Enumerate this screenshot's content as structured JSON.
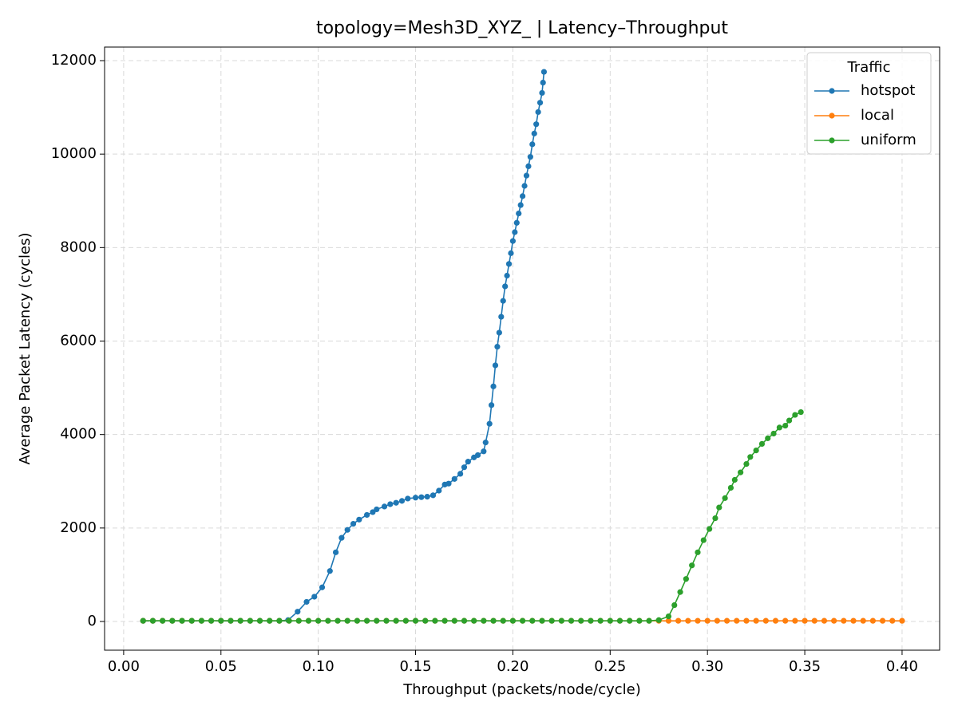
{
  "chart_data": {
    "type": "line",
    "title": "topology=Mesh3D_XYZ_ | Latency–Throughput",
    "x_label": "Throughput (packets/node/cycle)",
    "y_label": "Average Packet Latency (cycles)",
    "legend_title": "Traffic",
    "legend": "upper right",
    "grid": true,
    "xlim": [
      -0.0098,
      0.4193
    ],
    "ylim": [
      -614,
      12290
    ],
    "xticks": [
      {
        "value": 0,
        "label": "0.00"
      },
      {
        "value": 0.05,
        "label": "0.05"
      },
      {
        "value": 0.1,
        "label": "0.10"
      },
      {
        "value": 0.15,
        "label": "0.15"
      },
      {
        "value": 0.2,
        "label": "0.20"
      },
      {
        "value": 0.25,
        "label": "0.25"
      },
      {
        "value": 0.3,
        "label": "0.30"
      },
      {
        "value": 0.35,
        "label": "0.35"
      },
      {
        "value": 0.4,
        "label": "0.40"
      }
    ],
    "yticks": [
      0,
      2000,
      4000,
      6000,
      8000,
      10000,
      12000
    ],
    "series": [
      {
        "name": "hotspot",
        "color": "#1f77b4",
        "x": [
          0.01,
          0.015,
          0.02,
          0.025,
          0.03,
          0.035,
          0.04,
          0.045,
          0.05,
          0.055,
          0.06,
          0.065,
          0.07,
          0.075,
          0.08,
          0.0845,
          0.0894,
          0.094,
          0.098,
          0.102,
          0.106,
          0.109,
          0.112,
          0.115,
          0.118,
          0.121,
          0.125,
          0.128,
          0.13,
          0.134,
          0.137,
          0.14,
          0.143,
          0.146,
          0.15,
          0.153,
          0.156,
          0.159,
          0.162,
          0.165,
          0.167,
          0.17,
          0.173,
          0.175,
          0.177,
          0.18,
          0.182,
          0.185,
          0.186,
          0.188,
          0.189,
          0.19,
          0.191,
          0.192,
          0.193,
          0.194,
          0.195,
          0.196,
          0.197,
          0.198,
          0.199,
          0.2,
          0.201,
          0.202,
          0.203,
          0.204,
          0.205,
          0.206,
          0.207,
          0.208,
          0.209,
          0.21,
          0.211,
          0.212,
          0.213,
          0.214,
          0.215,
          0.2155,
          0.216
        ],
        "values": [
          15,
          15,
          15,
          15,
          15,
          15,
          15,
          15,
          15,
          15,
          15,
          15,
          15,
          15,
          15,
          30,
          210,
          420,
          530,
          730,
          1080,
          1480,
          1790,
          1960,
          2090,
          2180,
          2280,
          2340,
          2400,
          2460,
          2510,
          2540,
          2580,
          2630,
          2650,
          2660,
          2670,
          2700,
          2800,
          2930,
          2950,
          3050,
          3160,
          3300,
          3420,
          3510,
          3560,
          3640,
          3830,
          4230,
          4630,
          5030,
          5480,
          5880,
          6180,
          6520,
          6860,
          7170,
          7400,
          7650,
          7880,
          8140,
          8330,
          8530,
          8730,
          8910,
          9100,
          9320,
          9540,
          9740,
          9940,
          10210,
          10440,
          10640,
          10900,
          11100,
          11310,
          11530,
          11760
        ]
      },
      {
        "name": "local",
        "color": "#ff7f0e",
        "x": [
          0.01,
          0.015,
          0.02,
          0.025,
          0.03,
          0.035,
          0.04,
          0.045,
          0.05,
          0.055,
          0.06,
          0.065,
          0.07,
          0.075,
          0.08,
          0.085,
          0.09,
          0.095,
          0.1,
          0.105,
          0.11,
          0.115,
          0.12,
          0.125,
          0.13,
          0.135,
          0.14,
          0.145,
          0.15,
          0.155,
          0.16,
          0.165,
          0.17,
          0.175,
          0.18,
          0.185,
          0.19,
          0.195,
          0.2,
          0.205,
          0.21,
          0.215,
          0.22,
          0.225,
          0.23,
          0.235,
          0.24,
          0.245,
          0.25,
          0.255,
          0.26,
          0.265,
          0.27,
          0.275,
          0.28,
          0.285,
          0.29,
          0.295,
          0.3,
          0.305,
          0.31,
          0.315,
          0.32,
          0.325,
          0.33,
          0.335,
          0.34,
          0.345,
          0.35,
          0.355,
          0.36,
          0.365,
          0.37,
          0.375,
          0.38,
          0.385,
          0.39,
          0.395,
          0.4
        ],
        "values": [
          15,
          15,
          15,
          15,
          15,
          15,
          15,
          15,
          15,
          15,
          15,
          15,
          15,
          15,
          15,
          15,
          15,
          15,
          15,
          15,
          15,
          15,
          15,
          15,
          15,
          15,
          15,
          15,
          15,
          15,
          15,
          15,
          15,
          15,
          15,
          15,
          15,
          15,
          15,
          15,
          15,
          15,
          15,
          15,
          15,
          15,
          15,
          15,
          15,
          15,
          15,
          15,
          15,
          15,
          15,
          15,
          15,
          15,
          15,
          15,
          15,
          15,
          15,
          15,
          15,
          15,
          15,
          15,
          15,
          15,
          15,
          15,
          15,
          15,
          15,
          15,
          15,
          15,
          15
        ]
      },
      {
        "name": "uniform",
        "color": "#2ca02c",
        "x": [
          0.01,
          0.015,
          0.02,
          0.025,
          0.03,
          0.035,
          0.04,
          0.045,
          0.05,
          0.055,
          0.06,
          0.065,
          0.07,
          0.075,
          0.08,
          0.085,
          0.09,
          0.095,
          0.1,
          0.105,
          0.11,
          0.115,
          0.12,
          0.125,
          0.13,
          0.135,
          0.14,
          0.145,
          0.15,
          0.155,
          0.16,
          0.165,
          0.17,
          0.175,
          0.18,
          0.185,
          0.19,
          0.195,
          0.2,
          0.205,
          0.21,
          0.215,
          0.22,
          0.225,
          0.23,
          0.235,
          0.24,
          0.245,
          0.25,
          0.255,
          0.26,
          0.265,
          0.27,
          0.275,
          0.28,
          0.283,
          0.286,
          0.289,
          0.292,
          0.295,
          0.298,
          0.301,
          0.304,
          0.306,
          0.309,
          0.312,
          0.314,
          0.317,
          0.32,
          0.322,
          0.325,
          0.328,
          0.331,
          0.334,
          0.337,
          0.34,
          0.342,
          0.345,
          0.348
        ],
        "values": [
          15,
          15,
          15,
          15,
          15,
          15,
          15,
          15,
          15,
          15,
          15,
          15,
          15,
          15,
          15,
          15,
          15,
          15,
          15,
          15,
          15,
          15,
          15,
          15,
          15,
          15,
          15,
          15,
          15,
          15,
          15,
          15,
          15,
          15,
          15,
          15,
          15,
          15,
          15,
          15,
          15,
          15,
          15,
          15,
          15,
          15,
          15,
          15,
          15,
          15,
          15,
          15,
          15,
          30,
          110,
          350,
          630,
          910,
          1200,
          1480,
          1740,
          1980,
          2210,
          2440,
          2640,
          2860,
          3030,
          3190,
          3370,
          3520,
          3660,
          3800,
          3920,
          4020,
          4150,
          4190,
          4300,
          4420,
          4480
        ]
      }
    ]
  }
}
